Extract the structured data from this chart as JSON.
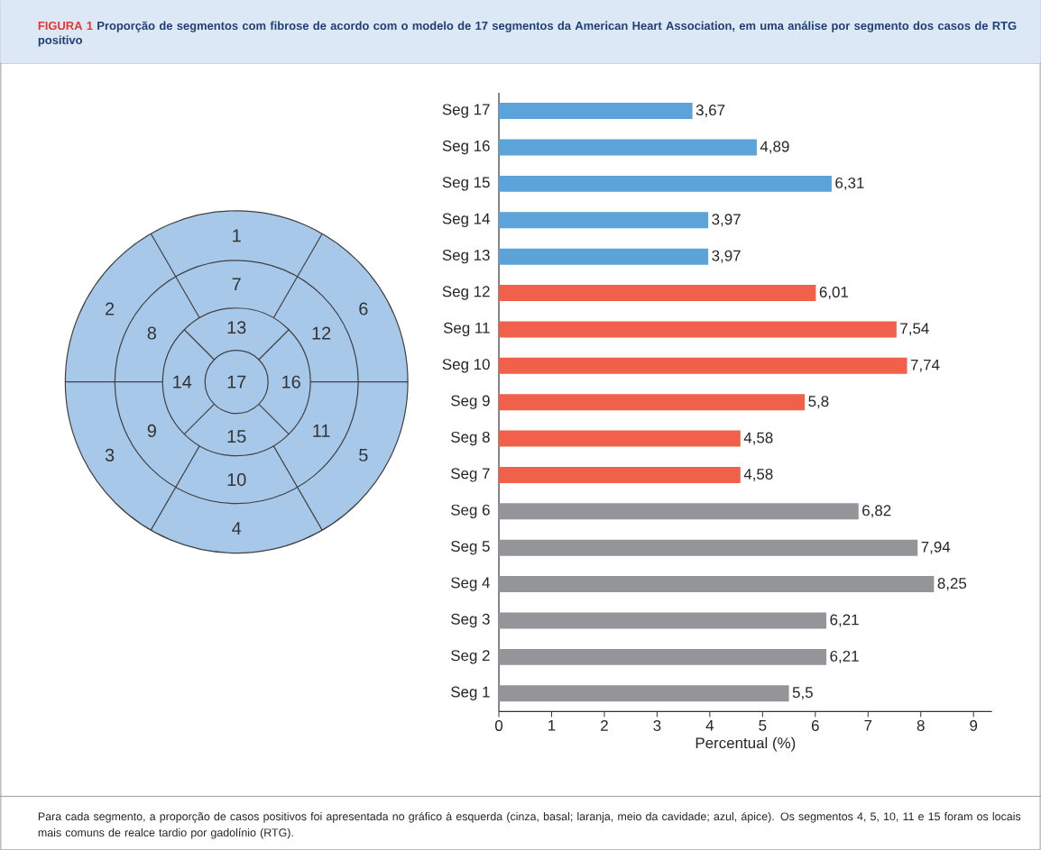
{
  "chart_data": [
    {
      "type": "other",
      "title": "FIGURA 1",
      "subtitle": "Proporção de segmentos com fibrose de acordo com o modelo de 17 segmentos da American Heart Association, em uma análise por segmento dos casos de RTG positivo",
      "annotations": [
        "1",
        "2",
        "3",
        "4",
        "5",
        "6",
        "7",
        "8",
        "9",
        "10",
        "11",
        "12",
        "13",
        "14",
        "15",
        "16",
        "17"
      ]
    },
    {
      "type": "bar",
      "orientation": "horizontal",
      "categories": [
        "Seg 17",
        "Seg 16",
        "Seg 15",
        "Seg 14",
        "Seg 13",
        "Seg 12",
        "Seg 11",
        "Seg 10",
        "Seg 9",
        "Seg 8",
        "Seg 7",
        "Seg 6",
        "Seg 5",
        "Seg 4",
        "Seg 3",
        "Seg 2",
        "Seg 1"
      ],
      "values": [
        3.67,
        4.89,
        6.31,
        3.97,
        3.97,
        6.01,
        7.54,
        7.74,
        5.8,
        4.58,
        4.58,
        6.82,
        7.94,
        8.25,
        6.21,
        6.21,
        5.5
      ],
      "value_labels": [
        "3,67",
        "4,89",
        "6,31",
        "3,97",
        "3,97",
        "6,01",
        "7,54",
        "7,74",
        "5,8",
        "4,58",
        "4,58",
        "6,82",
        "7,94",
        "8,25",
        "6,21",
        "6,21",
        "5,5"
      ],
      "colors": [
        "#5ba3d9",
        "#5ba3d9",
        "#5ba3d9",
        "#5ba3d9",
        "#5ba3d9",
        "#f0604a",
        "#f0604a",
        "#f0604a",
        "#f0604a",
        "#f0604a",
        "#f0604a",
        "#939598",
        "#939598",
        "#939598",
        "#939598",
        "#939598",
        "#939598"
      ],
      "xlabel": "Percentual (%)",
      "xlim": [
        0,
        9.35
      ],
      "xticks": [
        0,
        1,
        2,
        3,
        4,
        5,
        6,
        7,
        8,
        9
      ],
      "annotations": [
        "Para cada segmento, a proporção de casos positivos foi apresentada no gráfico à esquerda (cinza, basal; laranja, meio da cavidade; azul, ápice). Os segmentos 4, 5, 10, 11 e 15 foram os locais mais comuns de realce tardio por gadolínio (RTG)."
      ]
    }
  ]
}
